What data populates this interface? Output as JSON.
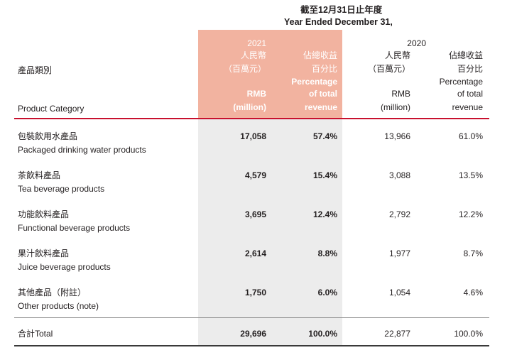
{
  "header": {
    "period_zh": "截至12月31日止年度",
    "period_en": "Year Ended December 31,",
    "year_2021": "2021",
    "year_2020": "2020",
    "category_zh": "產品類別",
    "category_en": "Product Category",
    "rmb_zh": "人民幣",
    "million_zh": "（百萬元）",
    "rmb_en": "RMB",
    "million_en": "(million)",
    "pct_zh_1": "佔總收益",
    "pct_zh_2": "百分比",
    "pct_en_1": "Percentage",
    "pct_en_2": "of total",
    "pct_en_3": "revenue"
  },
  "rows": [
    {
      "zh": "包裝飲用水產品",
      "en": "Packaged drinking water products",
      "rmb_2021": "17,058",
      "pct_2021": "57.4%",
      "rmb_2020": "13,966",
      "pct_2020": "61.0%"
    },
    {
      "zh": "茶飲料產品",
      "en": "Tea beverage products",
      "rmb_2021": "4,579",
      "pct_2021": "15.4%",
      "rmb_2020": "3,088",
      "pct_2020": "13.5%"
    },
    {
      "zh": "功能飲料產品",
      "en": "Functional beverage products",
      "rmb_2021": "3,695",
      "pct_2021": "12.4%",
      "rmb_2020": "2,792",
      "pct_2020": "12.2%"
    },
    {
      "zh": "果汁飲料產品",
      "en": "Juice beverage products",
      "rmb_2021": "2,614",
      "pct_2021": "8.8%",
      "rmb_2020": "1,977",
      "pct_2020": "8.7%"
    },
    {
      "zh": "其他產品（附註）",
      "en": "Other products (note)",
      "rmb_2021": "1,750",
      "pct_2021": "6.0%",
      "rmb_2020": "1,054",
      "pct_2020": "4.6%"
    }
  ],
  "total": {
    "label": "合計Total",
    "rmb_2021": "29,696",
    "pct_2021": "100.0%",
    "rmb_2020": "22,877",
    "pct_2020": "100.0%"
  }
}
